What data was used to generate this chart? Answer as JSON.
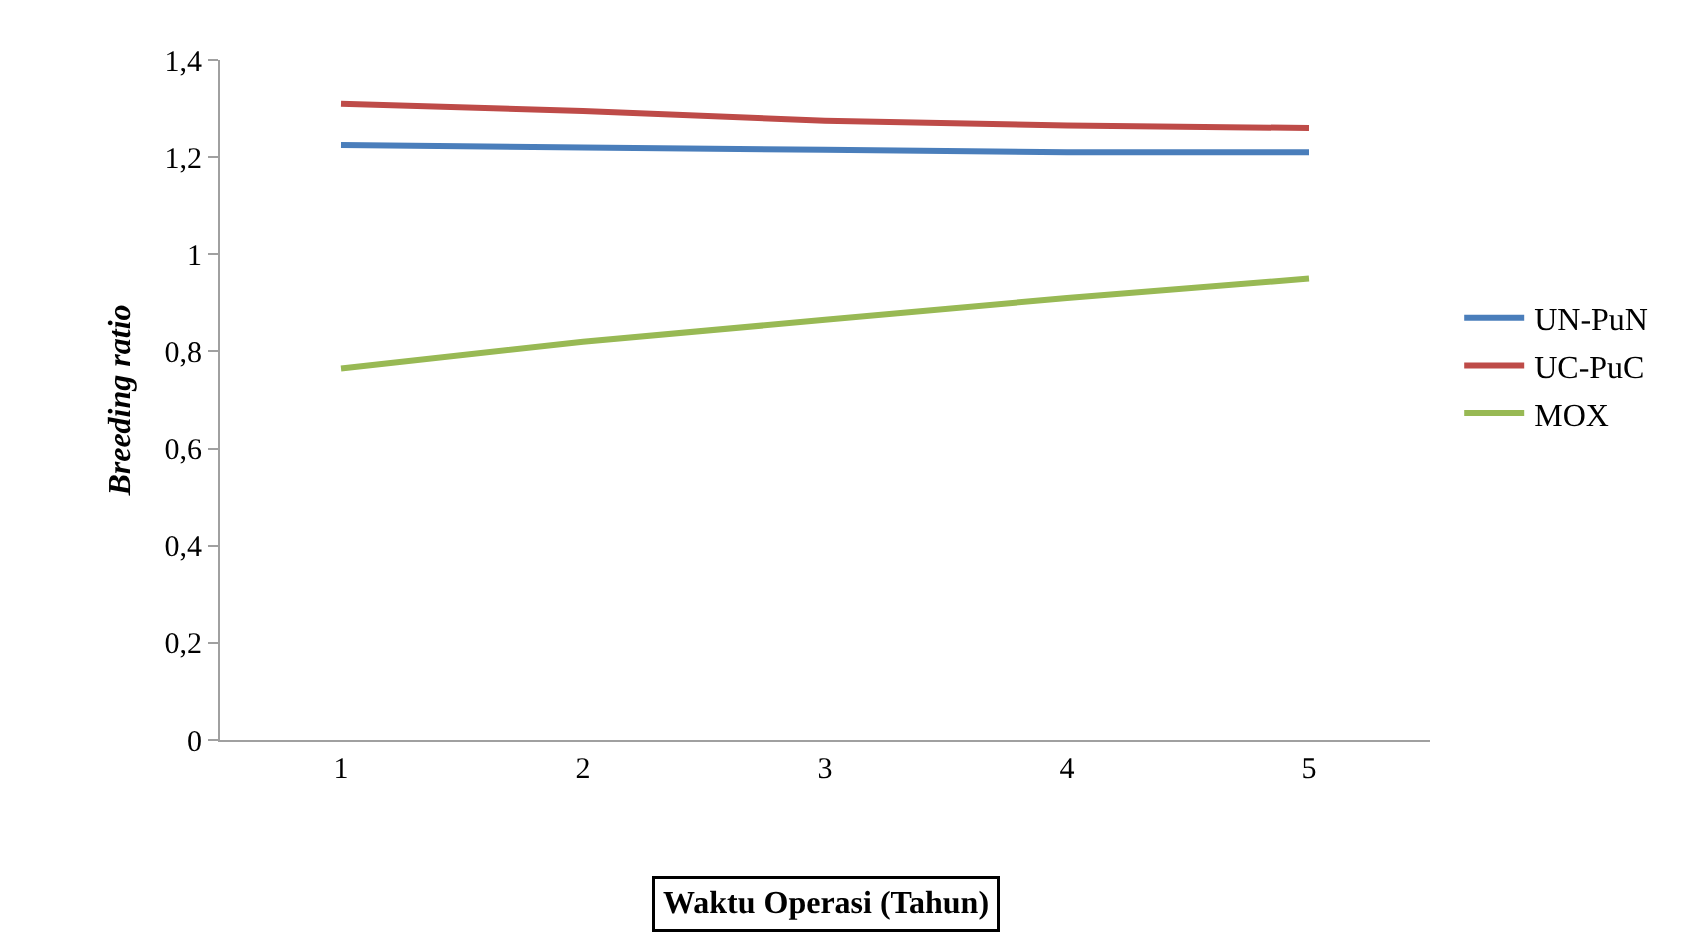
{
  "chart_data": {
    "type": "line",
    "xlabel": "Waktu Operasi (Tahun)",
    "ylabel": "Breeding ratio",
    "categories": [
      "1",
      "2",
      "3",
      "4",
      "5"
    ],
    "series": [
      {
        "name": "UN-PuN",
        "color": "#4a7ebb",
        "values": [
          1.225,
          1.22,
          1.215,
          1.21,
          1.21
        ]
      },
      {
        "name": "UC-PuC",
        "color": "#be4b48",
        "values": [
          1.31,
          1.295,
          1.275,
          1.265,
          1.26
        ]
      },
      {
        "name": "MOX",
        "color": "#98b954",
        "values": [
          0.765,
          0.82,
          0.865,
          0.91,
          0.95
        ]
      }
    ],
    "ylim": [
      0,
      1.4
    ],
    "yticks": [
      0,
      {
        "value": 0.2,
        "label": "0,2"
      },
      {
        "value": 0.4,
        "label": "0,4"
      },
      {
        "value": 0.6,
        "label": "0,6"
      },
      {
        "value": 0.8,
        "label": "0,8"
      },
      1,
      {
        "value": 1.2,
        "label": "1,2"
      },
      {
        "value": 1.4,
        "label": "1,4"
      }
    ],
    "legend": "right",
    "marker": "none",
    "line_style": "solid"
  }
}
